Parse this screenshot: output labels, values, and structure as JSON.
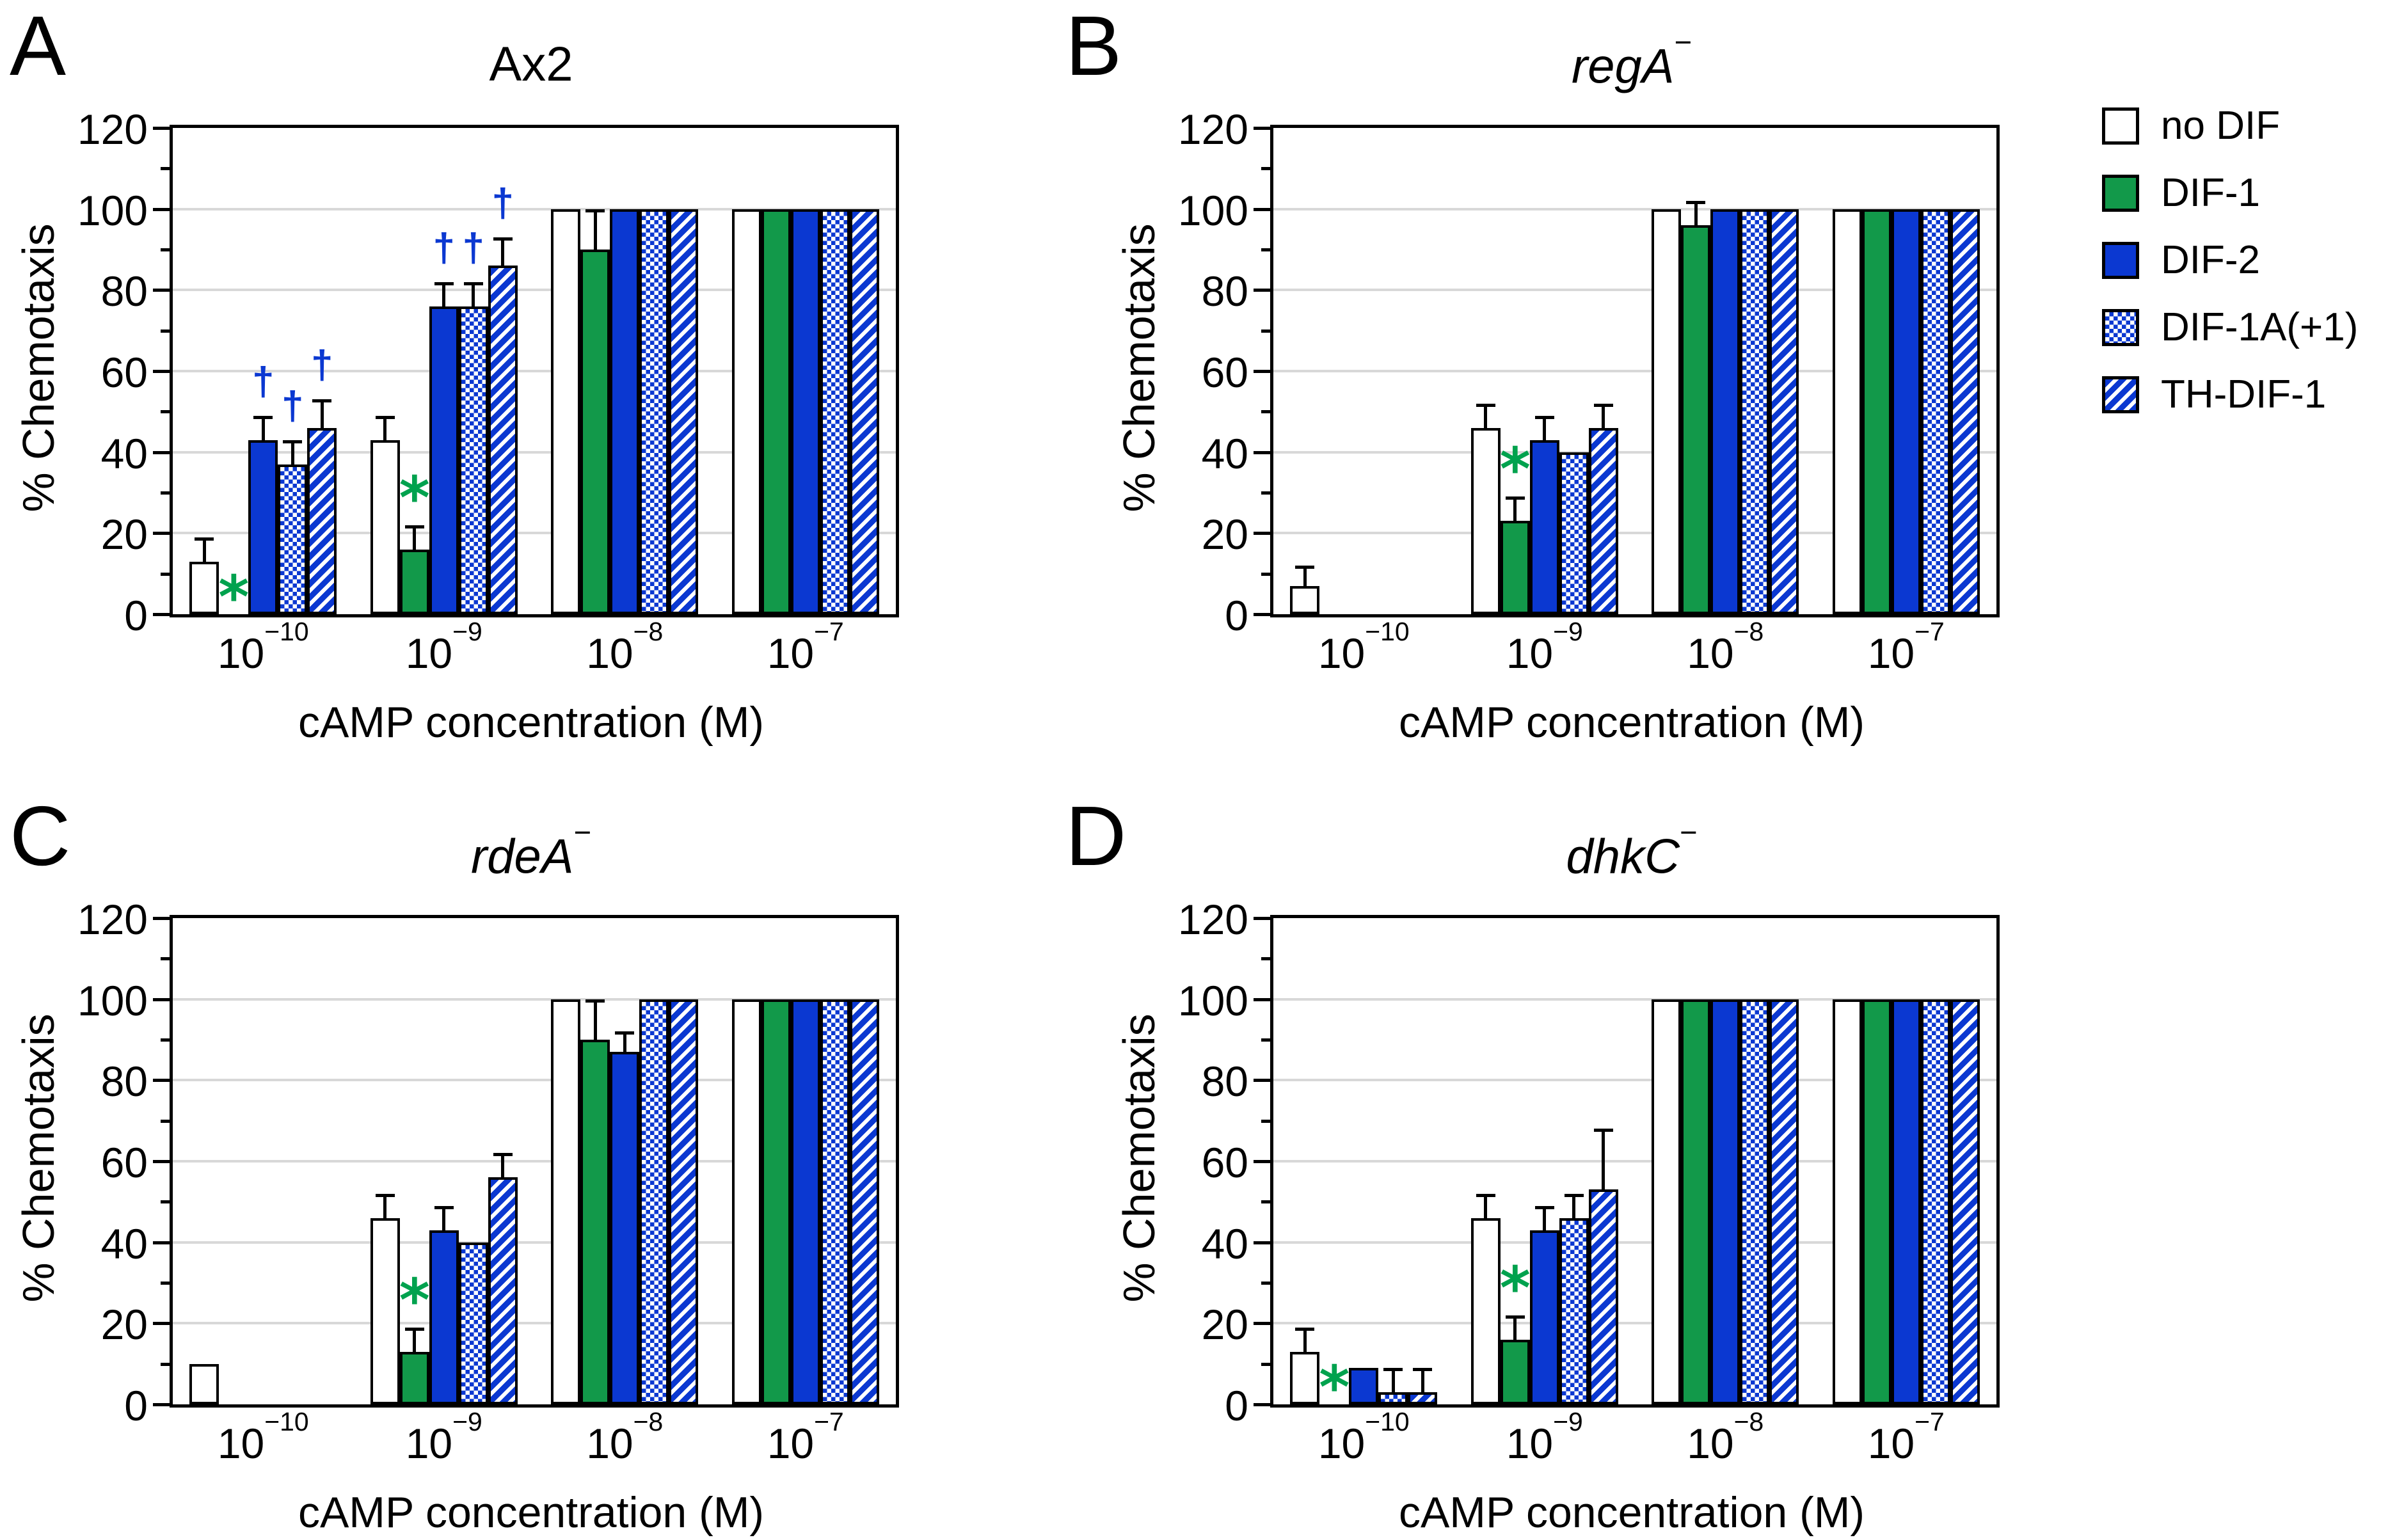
{
  "colors": {
    "bar_blue": "#0b38d1",
    "bar_green": "#12994a",
    "sig_star_green": "#00a24e",
    "sig_dagger_blue": "#0b38d1",
    "gridline_gray": "#d8d8d8"
  },
  "legend": {
    "entries": [
      {
        "label": "no DIF",
        "pattern": "white"
      },
      {
        "label": "DIF-1",
        "pattern": "green"
      },
      {
        "label": "DIF-2",
        "pattern": "blue"
      },
      {
        "label": "DIF-1A(+1)",
        "pattern": "checker"
      },
      {
        "label": "TH-DIF-1",
        "pattern": "hatch"
      }
    ]
  },
  "chart_data": [
    {
      "type": "bar",
      "panel": "A",
      "title": "Ax2",
      "title_italic": false,
      "title_suffix": "",
      "xlabel": "cAMP concentration (M)",
      "ylabel": "% Chemotaxis",
      "ylim": [
        0,
        120
      ],
      "ytick_step": 20,
      "grid": true,
      "legend_position": "right-of-figure",
      "series_order": [
        "no DIF",
        "DIF-1",
        "DIF-2",
        "DIF-1A(+1)",
        "TH-DIF-1"
      ],
      "categories_exponents": [
        -10,
        -9,
        -8,
        -7
      ],
      "groups": [
        {
          "conc": "10^-10",
          "bars": [
            {
              "v": 13,
              "e": 6
            },
            {
              "v": 0,
              "e": 0,
              "sig": "star"
            },
            {
              "v": 43,
              "e": 6,
              "sig": "dagger"
            },
            {
              "v": 37,
              "e": 6,
              "sig": "dagger"
            },
            {
              "v": 46,
              "e": 7,
              "sig": "dagger"
            }
          ]
        },
        {
          "conc": "10^-9",
          "bars": [
            {
              "v": 43,
              "e": 6
            },
            {
              "v": 16,
              "e": 6,
              "sig": "star"
            },
            {
              "v": 76,
              "e": 6,
              "sig": "dagger"
            },
            {
              "v": 76,
              "e": 6,
              "sig": "dagger"
            },
            {
              "v": 86,
              "e": 7,
              "sig": "dagger"
            }
          ]
        },
        {
          "conc": "10^-8",
          "bars": [
            {
              "v": 100,
              "e": 0
            },
            {
              "v": 90,
              "e": 10
            },
            {
              "v": 100,
              "e": 0
            },
            {
              "v": 100,
              "e": 0
            },
            {
              "v": 100,
              "e": 0
            }
          ]
        },
        {
          "conc": "10^-7",
          "bars": [
            {
              "v": 100,
              "e": 0
            },
            {
              "v": 100,
              "e": 0
            },
            {
              "v": 100,
              "e": 0
            },
            {
              "v": 100,
              "e": 0
            },
            {
              "v": 100,
              "e": 0
            }
          ]
        }
      ]
    },
    {
      "type": "bar",
      "panel": "B",
      "title": "regA",
      "title_italic": true,
      "title_suffix": "−",
      "xlabel": "cAMP concentration (M)",
      "ylabel": "% Chemotaxis",
      "ylim": [
        0,
        120
      ],
      "ytick_step": 20,
      "grid": true,
      "series_order": [
        "no DIF",
        "DIF-1",
        "DIF-2",
        "DIF-1A(+1)",
        "TH-DIF-1"
      ],
      "categories_exponents": [
        -10,
        -9,
        -8,
        -7
      ],
      "groups": [
        {
          "conc": "10^-10",
          "bars": [
            {
              "v": 7,
              "e": 5
            },
            {
              "v": 0,
              "e": 0
            },
            {
              "v": 0,
              "e": 0
            },
            {
              "v": 0,
              "e": 0
            },
            {
              "v": 0,
              "e": 0
            }
          ]
        },
        {
          "conc": "10^-9",
          "bars": [
            {
              "v": 46,
              "e": 6
            },
            {
              "v": 23,
              "e": 6,
              "sig": "star"
            },
            {
              "v": 43,
              "e": 6
            },
            {
              "v": 40,
              "e": 0
            },
            {
              "v": 46,
              "e": 6
            }
          ]
        },
        {
          "conc": "10^-8",
          "bars": [
            {
              "v": 100,
              "e": 0
            },
            {
              "v": 96,
              "e": 6
            },
            {
              "v": 100,
              "e": 0
            },
            {
              "v": 100,
              "e": 0
            },
            {
              "v": 100,
              "e": 0
            }
          ]
        },
        {
          "conc": "10^-7",
          "bars": [
            {
              "v": 100,
              "e": 0
            },
            {
              "v": 100,
              "e": 0
            },
            {
              "v": 100,
              "e": 0
            },
            {
              "v": 100,
              "e": 0
            },
            {
              "v": 100,
              "e": 0
            }
          ]
        }
      ]
    },
    {
      "type": "bar",
      "panel": "C",
      "title": "rdeA",
      "title_italic": true,
      "title_suffix": "−",
      "xlabel": "cAMP concentration (M)",
      "ylabel": "% Chemotaxis",
      "ylim": [
        0,
        120
      ],
      "ytick_step": 20,
      "grid": true,
      "series_order": [
        "no DIF",
        "DIF-1",
        "DIF-2",
        "DIF-1A(+1)",
        "TH-DIF-1"
      ],
      "categories_exponents": [
        -10,
        -9,
        -8,
        -7
      ],
      "groups": [
        {
          "conc": "10^-10",
          "bars": [
            {
              "v": 10,
              "e": 0
            },
            {
              "v": 0,
              "e": 0
            },
            {
              "v": 0,
              "e": 0
            },
            {
              "v": 0,
              "e": 0
            },
            {
              "v": 0,
              "e": 0
            }
          ]
        },
        {
          "conc": "10^-9",
          "bars": [
            {
              "v": 46,
              "e": 6
            },
            {
              "v": 13,
              "e": 6,
              "sig": "star"
            },
            {
              "v": 43,
              "e": 6
            },
            {
              "v": 40,
              "e": 0
            },
            {
              "v": 56,
              "e": 6
            }
          ]
        },
        {
          "conc": "10^-8",
          "bars": [
            {
              "v": 100,
              "e": 0
            },
            {
              "v": 90,
              "e": 10
            },
            {
              "v": 87,
              "e": 5
            },
            {
              "v": 100,
              "e": 0
            },
            {
              "v": 100,
              "e": 0
            }
          ]
        },
        {
          "conc": "10^-7",
          "bars": [
            {
              "v": 100,
              "e": 0
            },
            {
              "v": 100,
              "e": 0
            },
            {
              "v": 100,
              "e": 0
            },
            {
              "v": 100,
              "e": 0
            },
            {
              "v": 100,
              "e": 0
            }
          ]
        }
      ]
    },
    {
      "type": "bar",
      "panel": "D",
      "title": "dhkC",
      "title_italic": true,
      "title_suffix": "−",
      "xlabel": "cAMP concentration (M)",
      "ylabel": "% Chemotaxis",
      "ylim": [
        0,
        120
      ],
      "ytick_step": 20,
      "grid": true,
      "series_order": [
        "no DIF",
        "DIF-1",
        "DIF-2",
        "DIF-1A(+1)",
        "TH-DIF-1"
      ],
      "categories_exponents": [
        -10,
        -9,
        -8,
        -7
      ],
      "groups": [
        {
          "conc": "10^-10",
          "bars": [
            {
              "v": 13,
              "e": 6
            },
            {
              "v": 0,
              "e": 0,
              "sig": "star"
            },
            {
              "v": 9,
              "e": 0
            },
            {
              "v": 3,
              "e": 6
            },
            {
              "v": 3,
              "e": 6
            }
          ]
        },
        {
          "conc": "10^-9",
          "bars": [
            {
              "v": 46,
              "e": 6
            },
            {
              "v": 16,
              "e": 6,
              "sig": "star"
            },
            {
              "v": 43,
              "e": 6
            },
            {
              "v": 46,
              "e": 6
            },
            {
              "v": 53,
              "e": 15
            }
          ]
        },
        {
          "conc": "10^-8",
          "bars": [
            {
              "v": 100,
              "e": 0
            },
            {
              "v": 100,
              "e": 0
            },
            {
              "v": 100,
              "e": 0
            },
            {
              "v": 100,
              "e": 0
            },
            {
              "v": 100,
              "e": 0
            }
          ]
        },
        {
          "conc": "10^-7",
          "bars": [
            {
              "v": 100,
              "e": 0
            },
            {
              "v": 100,
              "e": 0
            },
            {
              "v": 100,
              "e": 0
            },
            {
              "v": 100,
              "e": 0
            },
            {
              "v": 100,
              "e": 0
            }
          ]
        }
      ]
    }
  ]
}
